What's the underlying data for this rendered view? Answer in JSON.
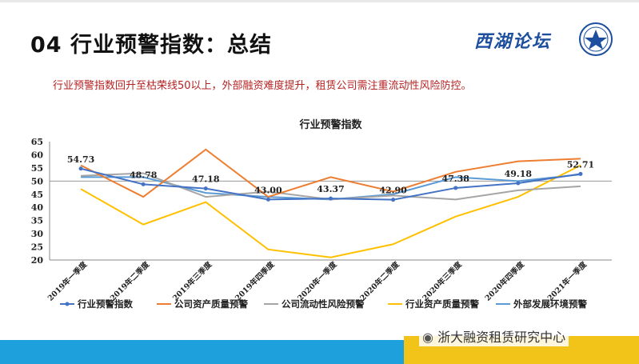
{
  "slide": {
    "title": "04 行业预警指数：总结",
    "subtitle": "行业预警指数回升至枯荣线50以上，外部融资难度提升，租赁公司需注重流动性风险防控。",
    "forum_logo": "西湖论坛",
    "watermark": "浙大融资租赁研究中心",
    "emblem_icon": "university-emblem-icon",
    "wechat_icon": "wechat-icon",
    "accent_blue": "#1ea0dc",
    "accent_yellow": "#f2c318"
  },
  "chart_data": {
    "type": "line",
    "title": "行业预警指数",
    "ylim": [
      20,
      65
    ],
    "yticks": [
      20,
      25,
      30,
      35,
      40,
      45,
      50,
      55,
      60,
      65
    ],
    "categories": [
      "2019年一季度",
      "2019年二季度",
      "2019年三季度",
      "2019年四季度",
      "2020年一季度",
      "2020年二季度",
      "2020年三季度",
      "2020年四季度",
      "2021年一季度"
    ],
    "legend_position": "bottom",
    "series": [
      {
        "name": "行业预警指数",
        "color": "#4472c4",
        "marker": "circle",
        "values": [
          54.73,
          48.78,
          47.18,
          43.0,
          43.37,
          42.9,
          47.38,
          49.18,
          52.71
        ],
        "labels": [
          "54.73",
          "48.78",
          "47.18",
          "43.00",
          "43.37",
          "42.90",
          "47.38",
          "49.18",
          "52.71"
        ]
      },
      {
        "name": "公司资产质量预警",
        "color": "#ed7d31",
        "marker": "none",
        "values": [
          56,
          44,
          62,
          44,
          51.5,
          46,
          53.5,
          57.5,
          58.5
        ]
      },
      {
        "name": "公司流动性风险预警",
        "color": "#a5a5a5",
        "marker": "none",
        "values": [
          52,
          53,
          44,
          46,
          43,
          44.5,
          43,
          46.5,
          48
        ]
      },
      {
        "name": "行业资产质量预警",
        "color": "#ffc000",
        "marker": "none",
        "values": [
          47,
          33.5,
          42,
          24,
          21,
          26,
          36.5,
          44,
          56
        ]
      },
      {
        "name": "外部发展环境预警",
        "color": "#5b9bd5",
        "marker": "none",
        "values": [
          51.5,
          51.5,
          45.5,
          44,
          43,
          45,
          51.5,
          50,
          52.5
        ]
      }
    ]
  }
}
